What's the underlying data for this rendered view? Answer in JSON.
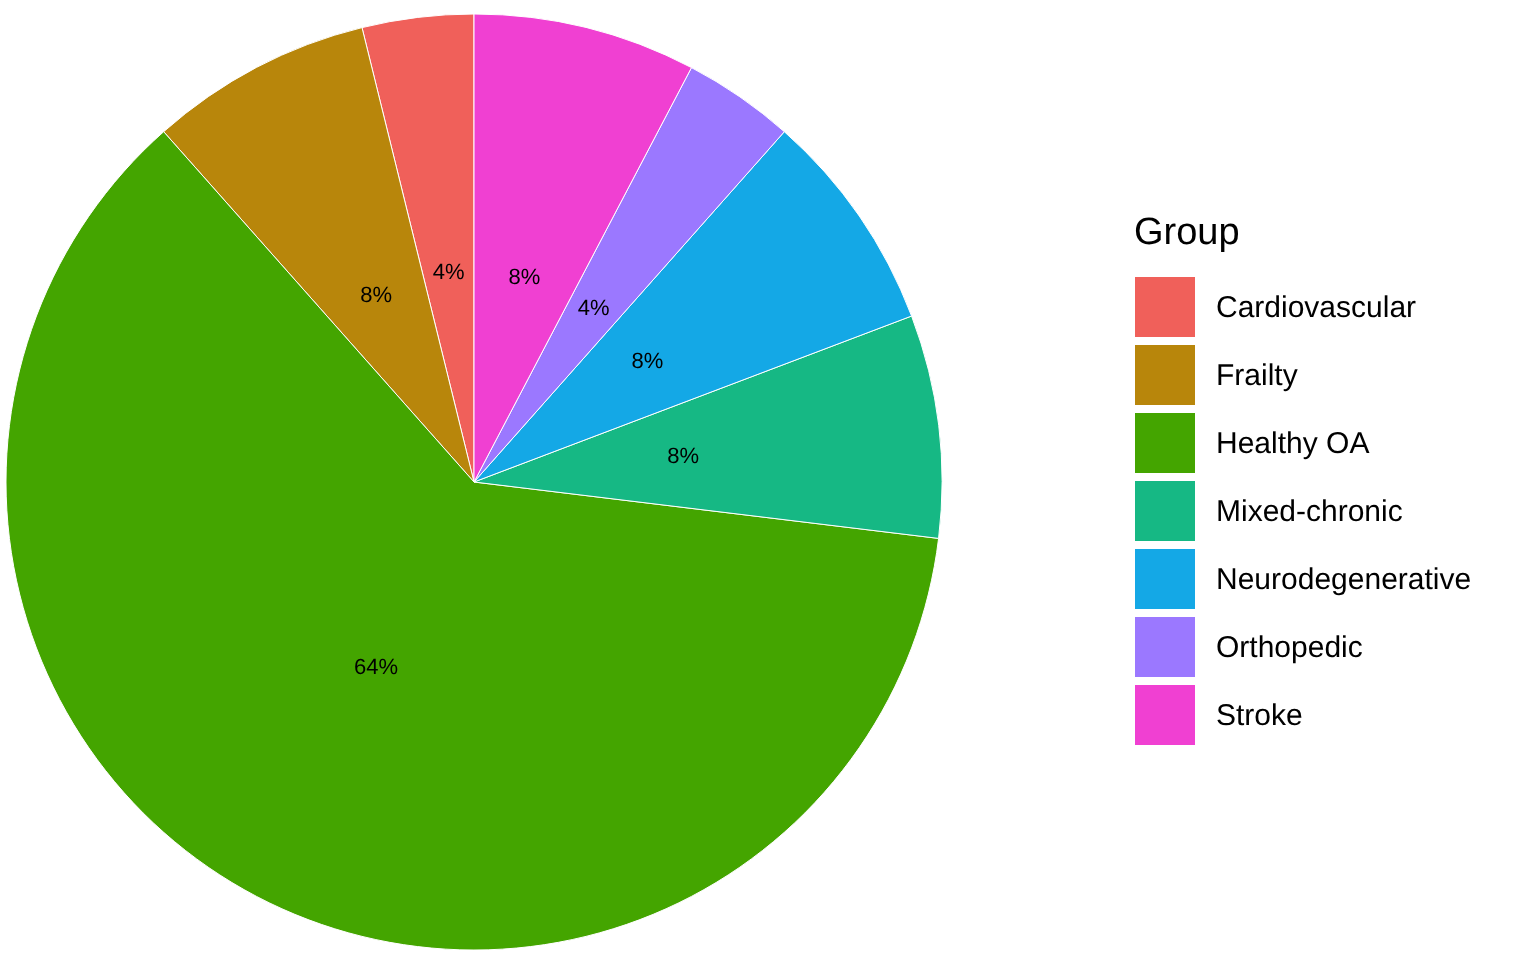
{
  "chart_data": {
    "type": "pie",
    "legend_title": "Group",
    "legend": "right",
    "categories": [
      "Cardiovascular",
      "Frailty",
      "Healthy OA",
      "Mixed-chronic",
      "Neurodegenerative",
      "Orthopedic",
      "Stroke"
    ],
    "values": [
      4,
      8,
      64,
      8,
      8,
      4,
      8
    ],
    "value_labels": [
      "4%",
      "8%",
      "64%",
      "8%",
      "8%",
      "4%",
      "8%"
    ],
    "colors": [
      "#f0605a",
      "#b8860b",
      "#44a500",
      "#16b884",
      "#14a8e6",
      "#9b78ff",
      "#f040d2"
    ]
  }
}
